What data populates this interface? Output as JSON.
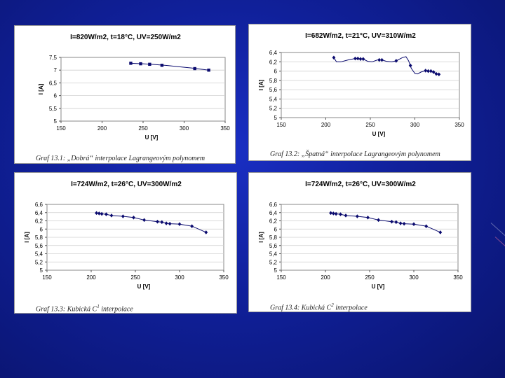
{
  "chart_data": [
    {
      "type": "line",
      "title": "I=820W/m2, t=18°C, UV=250W/m2",
      "xlabel": "U [V]",
      "ylabel": "I [A]",
      "xlim": [
        150,
        350
      ],
      "ylim": [
        5,
        7.5
      ],
      "xticks": [
        "150",
        "200",
        "250",
        "300",
        "350"
      ],
      "yticks": [
        "5",
        "5,5",
        "6",
        "6,5",
        "7",
        "7,5"
      ],
      "x": [
        235,
        247,
        258,
        273,
        313,
        330
      ],
      "values": [
        7.27,
        7.25,
        7.23,
        7.19,
        7.06,
        7.0
      ],
      "curve": [
        [
          235,
          7.27
        ],
        [
          250,
          7.25
        ],
        [
          265,
          7.22
        ],
        [
          280,
          7.18
        ],
        [
          295,
          7.13
        ],
        [
          310,
          7.08
        ],
        [
          320,
          7.04
        ],
        [
          330,
          7.0
        ]
      ],
      "marker": "square",
      "caption": "Graf 13.1: „Dobrá“ interpolace Lagrangeovým polynomem"
    },
    {
      "type": "line",
      "title": "I=682W/m2, t=21°C, UV=310W/m2",
      "xlabel": "U [V]",
      "ylabel": "I [A]",
      "xlim": [
        150,
        350
      ],
      "ylim": [
        5,
        6.4
      ],
      "xticks": [
        "150",
        "200",
        "250",
        "300",
        "350"
      ],
      "yticks": [
        "5",
        "5,2",
        "5,4",
        "5,6",
        "5,8",
        "6",
        "6,2",
        "6,4"
      ],
      "x": [
        209,
        233,
        236,
        239,
        242,
        260,
        263,
        279,
        295,
        312,
        315,
        318,
        321,
        324,
        327
      ],
      "values": [
        6.29,
        6.27,
        6.27,
        6.26,
        6.26,
        6.24,
        6.24,
        6.22,
        6.12,
        6.01,
        6.0,
        6.0,
        5.98,
        5.94,
        5.93
      ],
      "curve": [
        [
          209,
          6.29
        ],
        [
          212,
          6.2
        ],
        [
          217,
          6.2
        ],
        [
          225,
          6.24
        ],
        [
          233,
          6.27
        ],
        [
          242,
          6.26
        ],
        [
          247,
          6.21
        ],
        [
          252,
          6.2
        ],
        [
          258,
          6.24
        ],
        [
          263,
          6.24
        ],
        [
          268,
          6.21
        ],
        [
          274,
          6.2
        ],
        [
          279,
          6.22
        ],
        [
          286,
          6.29
        ],
        [
          290,
          6.31
        ],
        [
          293,
          6.22
        ],
        [
          296,
          6.06
        ],
        [
          300,
          5.95
        ],
        [
          303,
          5.94
        ],
        [
          307,
          5.98
        ],
        [
          312,
          6.01
        ],
        [
          318,
          6.0
        ],
        [
          322,
          5.96
        ],
        [
          327,
          5.93
        ]
      ],
      "marker": "diamond",
      "caption": "Graf 13.2: „Špatná“ interpolace Lagrangeovým polynomem"
    },
    {
      "type": "line",
      "title": "I=724W/m2, t=26°C, UV=300W/m2",
      "xlabel": "U [V]",
      "ylabel": "I [A]",
      "xlim": [
        150,
        350
      ],
      "ylim": [
        5,
        6.6
      ],
      "xticks": [
        "150",
        "200",
        "250",
        "300",
        "350"
      ],
      "yticks": [
        "5",
        "5,2",
        "5,4",
        "5,6",
        "5,8",
        "6",
        "6,2",
        "6,4",
        "6,6"
      ],
      "x": [
        206,
        209,
        212,
        217,
        223,
        236,
        248,
        260,
        275,
        280,
        285,
        289,
        300,
        314,
        330
      ],
      "values": [
        6.39,
        6.38,
        6.37,
        6.36,
        6.33,
        6.31,
        6.28,
        6.22,
        6.18,
        6.17,
        6.14,
        6.13,
        6.12,
        6.07,
        5.92
      ],
      "curve": [
        [
          206,
          6.39
        ],
        [
          209,
          6.38
        ],
        [
          212,
          6.37
        ],
        [
          217,
          6.36
        ],
        [
          223,
          6.33
        ],
        [
          236,
          6.31
        ],
        [
          248,
          6.28
        ],
        [
          260,
          6.22
        ],
        [
          275,
          6.18
        ],
        [
          280,
          6.17
        ],
        [
          285,
          6.14
        ],
        [
          289,
          6.13
        ],
        [
          300,
          6.12
        ],
        [
          314,
          6.07
        ],
        [
          330,
          5.92
        ]
      ],
      "marker": "diamond",
      "caption": "Graf 13.3: Kubická C",
      "caption_sup": "1",
      "caption_tail": " interpolace"
    },
    {
      "type": "line",
      "title": "I=724W/m2, t=26°C, UV=300W/m2",
      "xlabel": "U [V]",
      "ylabel": "I [A]",
      "xlim": [
        150,
        350
      ],
      "ylim": [
        5,
        6.6
      ],
      "xticks": [
        "150",
        "200",
        "250",
        "300",
        "350"
      ],
      "yticks": [
        "5",
        "5,2",
        "5,4",
        "5,6",
        "5,8",
        "6",
        "6,2",
        "6,4",
        "6,6"
      ],
      "x": [
        206,
        209,
        212,
        217,
        223,
        236,
        248,
        260,
        275,
        280,
        285,
        289,
        300,
        314,
        330
      ],
      "values": [
        6.39,
        6.38,
        6.37,
        6.36,
        6.33,
        6.31,
        6.28,
        6.22,
        6.18,
        6.17,
        6.14,
        6.13,
        6.12,
        6.07,
        5.92
      ],
      "curve": [
        [
          206,
          6.39
        ],
        [
          209,
          6.38
        ],
        [
          212,
          6.37
        ],
        [
          217,
          6.36
        ],
        [
          223,
          6.33
        ],
        [
          236,
          6.31
        ],
        [
          248,
          6.28
        ],
        [
          260,
          6.22
        ],
        [
          275,
          6.18
        ],
        [
          280,
          6.17
        ],
        [
          285,
          6.14
        ],
        [
          289,
          6.13
        ],
        [
          300,
          6.12
        ],
        [
          314,
          6.07
        ],
        [
          330,
          5.92
        ]
      ],
      "marker": "diamond",
      "caption": "Graf 13.4: Kubická C",
      "caption_sup": "2",
      "caption_tail": " interpolace"
    }
  ]
}
